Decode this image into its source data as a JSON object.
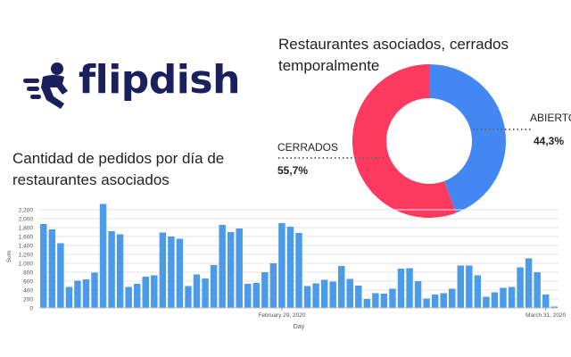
{
  "brand": {
    "name": "flipdish",
    "color": "#1a1f5e"
  },
  "colors": {
    "closed": "#fe3960",
    "open": "#4387f3",
    "bar": "#4b9be8"
  },
  "chart_data": [
    {
      "type": "pie",
      "donut": true,
      "title": "Restaurantes asociados, cerrados temporalmente",
      "slices": [
        {
          "label": "CERRADOS",
          "value": 55.7,
          "display": "55,7%",
          "color": "#fe3960"
        },
        {
          "label": "ABIERTOS",
          "value": 44.3,
          "display": "44,3%",
          "color": "#4387f3"
        }
      ]
    },
    {
      "type": "bar",
      "title": "Cantidad de pedidos por día de restaurantes asociados",
      "xlabel": "Day",
      "ylabel": "Sum",
      "ylim": [
        0,
        2300
      ],
      "yticks": [
        0,
        200,
        400,
        600,
        800,
        1000,
        1200,
        1400,
        1600,
        1800,
        2000,
        2200
      ],
      "ytick_labels": [
        "0",
        "200",
        "400",
        "600",
        "800",
        "1,000",
        "1,200",
        "1,400",
        "1,600",
        "1,800",
        "2,000",
        "2,200"
      ],
      "xtick_labels": [
        {
          "index": 28,
          "label": "February 29, 2020"
        },
        {
          "index": 59,
          "label": "March 31, 2020"
        }
      ],
      "values": [
        1880,
        1760,
        1450,
        470,
        610,
        640,
        790,
        2330,
        1720,
        1650,
        470,
        540,
        700,
        730,
        1690,
        1600,
        1550,
        490,
        750,
        660,
        960,
        1860,
        1700,
        1780,
        540,
        560,
        800,
        1000,
        1900,
        1820,
        1680,
        490,
        550,
        630,
        590,
        940,
        650,
        500,
        200,
        330,
        320,
        430,
        880,
        890,
        600,
        210,
        300,
        330,
        430,
        950,
        950,
        730,
        250,
        350,
        450,
        470,
        910,
        1110,
        800,
        300,
        30
      ]
    }
  ]
}
